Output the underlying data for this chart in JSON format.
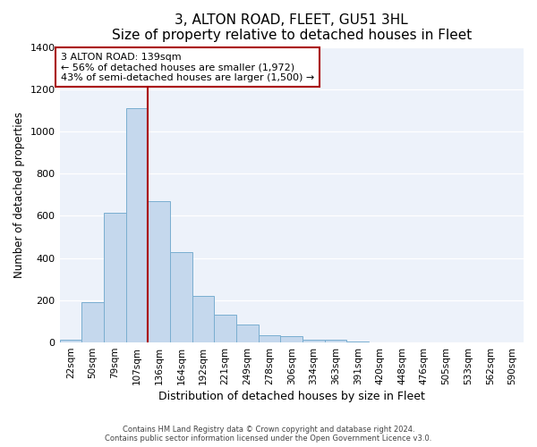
{
  "title": "3, ALTON ROAD, FLEET, GU51 3HL",
  "subtitle": "Size of property relative to detached houses in Fleet",
  "xlabel": "Distribution of detached houses by size in Fleet",
  "ylabel": "Number of detached properties",
  "bar_labels": [
    "22sqm",
    "50sqm",
    "79sqm",
    "107sqm",
    "136sqm",
    "164sqm",
    "192sqm",
    "221sqm",
    "249sqm",
    "278sqm",
    "306sqm",
    "334sqm",
    "363sqm",
    "391sqm",
    "420sqm",
    "448sqm",
    "476sqm",
    "505sqm",
    "533sqm",
    "562sqm",
    "590sqm"
  ],
  "bar_values": [
    15,
    190,
    615,
    1110,
    670,
    430,
    220,
    130,
    85,
    35,
    30,
    15,
    12,
    5,
    2,
    1,
    0,
    0,
    0,
    0,
    0
  ],
  "bar_color": "#c5d8ed",
  "bar_edge_color": "#7aaed0",
  "marker_index": 3,
  "marker_color": "#aa0000",
  "annotation_line1": "3 ALTON ROAD: 139sqm",
  "annotation_line2": "← 56% of detached houses are smaller (1,972)",
  "annotation_line3": "43% of semi-detached houses are larger (1,500) →",
  "ylim": [
    0,
    1400
  ],
  "yticks": [
    0,
    200,
    400,
    600,
    800,
    1000,
    1200,
    1400
  ],
  "footnote1": "Contains HM Land Registry data © Crown copyright and database right 2024.",
  "footnote2": "Contains public sector information licensed under the Open Government Licence v3.0.",
  "bg_color": "#edf2fa",
  "grid_color": "#ffffff"
}
